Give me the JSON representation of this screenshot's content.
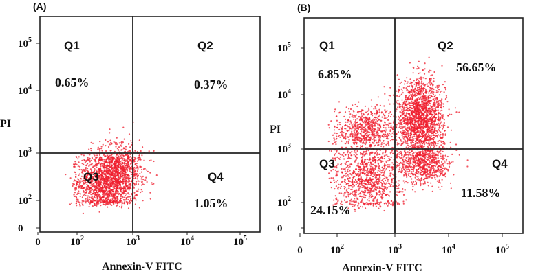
{
  "chart_data": [
    {
      "type": "scatter",
      "panel_label": "(A)",
      "xlabel": "Annexin-V FITC",
      "ylabel": "PI",
      "scale": "log",
      "xlim": [
        1,
        200000
      ],
      "ylim": [
        1,
        200000
      ],
      "gate": {
        "x": 1000,
        "y": 1000
      },
      "x_ticks": [
        {
          "base": "0",
          "exp": "",
          "value": 1
        },
        {
          "base": "10",
          "exp": "2",
          "value": 100
        },
        {
          "base": "10",
          "exp": "3",
          "value": 1000
        },
        {
          "base": "10",
          "exp": "4",
          "value": 10000
        },
        {
          "base": "10",
          "exp": "5",
          "value": 100000
        }
      ],
      "y_ticks": [
        {
          "base": "0",
          "exp": "",
          "value": 1
        },
        {
          "base": "10",
          "exp": "2",
          "value": 100
        },
        {
          "base": "10",
          "exp": "3",
          "value": 1000
        },
        {
          "base": "10",
          "exp": "4",
          "value": 10000
        },
        {
          "base": "10",
          "exp": "5",
          "value": 100000
        }
      ],
      "quadrants": [
        {
          "name": "Q1",
          "percent": "0.65%"
        },
        {
          "name": "Q2",
          "percent": "0.37%"
        },
        {
          "name": "Q3",
          "percent": ""
        },
        {
          "name": "Q4",
          "percent": "1.05%"
        }
      ],
      "series": [
        {
          "clusters": [
            {
              "x": 350,
              "y": 250,
              "sx": 0.28,
              "sy": 0.32,
              "n": 1700
            },
            {
              "x": 650,
              "y": 600,
              "sx": 0.2,
              "sy": 0.22,
              "n": 350
            }
          ]
        }
      ]
    },
    {
      "type": "scatter",
      "panel_label": "(B)",
      "xlabel": "Annexin-V FITC",
      "ylabel": "PI",
      "scale": "log",
      "xlim": [
        1,
        200000
      ],
      "ylim": [
        1,
        200000
      ],
      "gate": {
        "x": 1000,
        "y": 1000
      },
      "x_ticks": [
        {
          "base": "0",
          "exp": "",
          "value": 1
        },
        {
          "base": "10",
          "exp": "2",
          "value": 100
        },
        {
          "base": "10",
          "exp": "3",
          "value": 1000
        },
        {
          "base": "10",
          "exp": "4",
          "value": 10000
        },
        {
          "base": "10",
          "exp": "5",
          "value": 100000
        }
      ],
      "y_ticks": [
        {
          "base": "0",
          "exp": "",
          "value": 1
        },
        {
          "base": "10",
          "exp": "2",
          "value": 100
        },
        {
          "base": "10",
          "exp": "3",
          "value": 1000
        },
        {
          "base": "10",
          "exp": "4",
          "value": 10000
        },
        {
          "base": "10",
          "exp": "5",
          "value": 100000
        }
      ],
      "quadrants": [
        {
          "name": "Q1",
          "percent": "6.85%"
        },
        {
          "name": "Q2",
          "percent": "56.65%"
        },
        {
          "name": "Q3",
          "percent": "24.15%"
        },
        {
          "name": "Q4",
          "percent": "11.58%"
        }
      ],
      "series": [
        {
          "clusters": [
            {
              "x": 320,
              "y": 2200,
              "sx": 0.3,
              "sy": 0.22,
              "n": 700
            },
            {
              "x": 3000,
              "y": 3500,
              "sx": 0.22,
              "sy": 0.38,
              "n": 1900
            },
            {
              "x": 330,
              "y": 280,
              "sx": 0.3,
              "sy": 0.32,
              "n": 1000
            },
            {
              "x": 3600,
              "y": 500,
              "sx": 0.25,
              "sy": 0.18,
              "n": 600
            }
          ]
        }
      ]
    }
  ],
  "colors": {
    "dot": "#ef1c2c",
    "frame": "#222222"
  }
}
